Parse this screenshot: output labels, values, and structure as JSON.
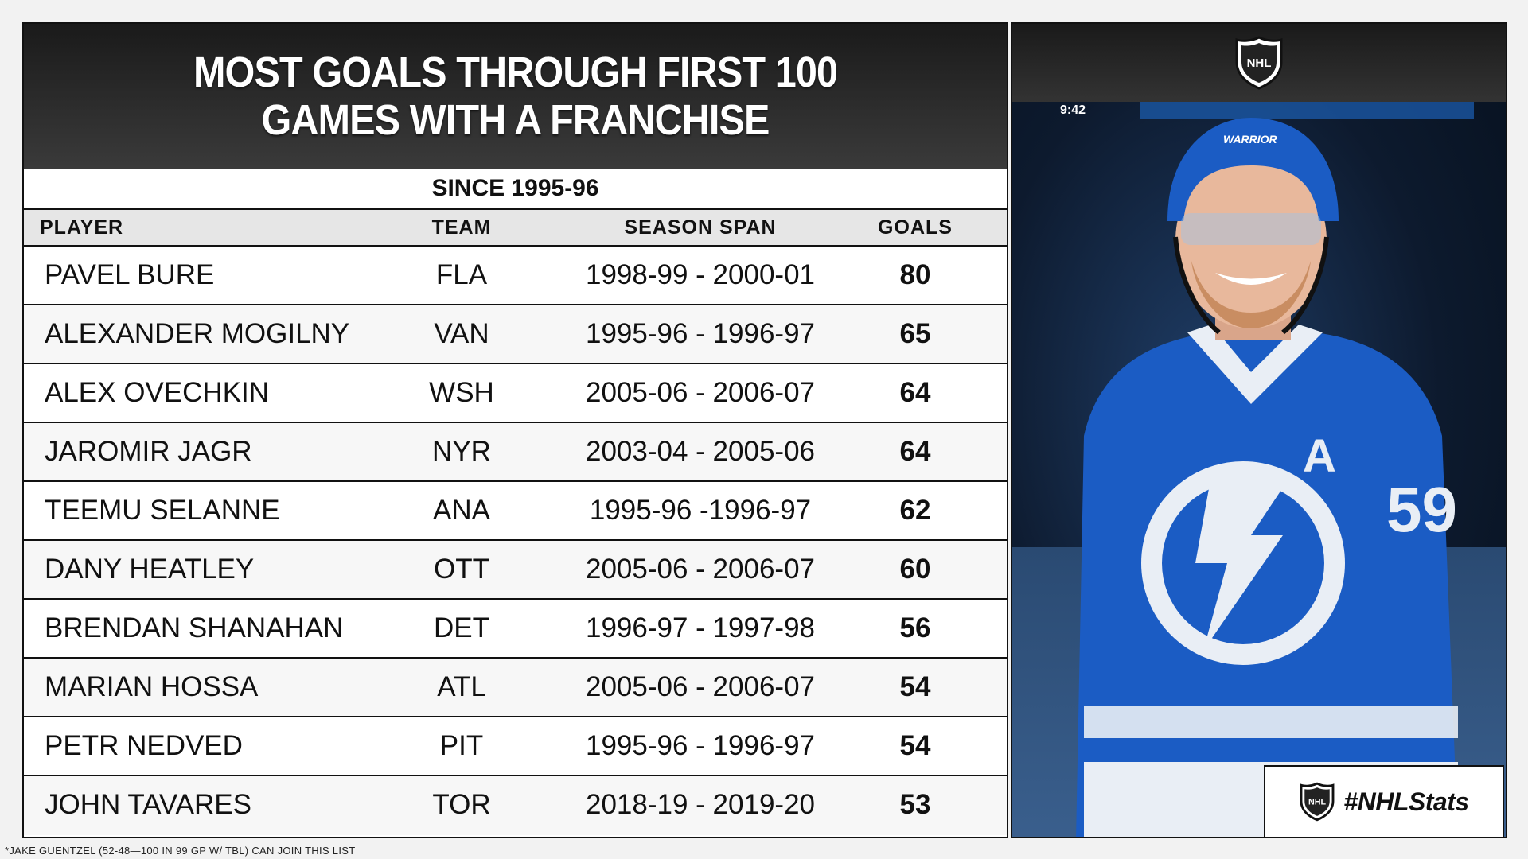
{
  "title_line1": "MOST GOALS THROUGH FIRST 100",
  "title_line2": "GAMES WITH A FRANCHISE",
  "subtitle": "SINCE 1995-96",
  "columns": {
    "player": "PLAYER",
    "team": "TEAM",
    "span": "SEASON SPAN",
    "goals": "GOALS"
  },
  "footnote": "*JAKE GUENTZEL (52-48—100 IN 99 GP W/ TBL) CAN JOIN THIS LIST",
  "badge": {
    "text": "#NHLStats",
    "logo_text": "NHL"
  },
  "header_logo_text": "NHL",
  "photo": {
    "clock": "9:42",
    "helmet_brand": "WARRIOR",
    "jersey_letter": "A",
    "jersey_number": "59"
  },
  "colors": {
    "header_bg": "#2c2c2c",
    "accent_blue": "#1d5fb5",
    "text": "#111111"
  },
  "chart_data": {
    "type": "table",
    "title": "MOST GOALS THROUGH FIRST 100 GAMES WITH A FRANCHISE",
    "subtitle": "SINCE 1995-96",
    "columns": [
      "PLAYER",
      "TEAM",
      "SEASON SPAN",
      "GOALS"
    ],
    "rows": [
      {
        "player": "PAVEL BURE",
        "team": "FLA",
        "span": "1998-99 - 2000-01",
        "goals": "80"
      },
      {
        "player": "ALEXANDER MOGILNY",
        "team": "VAN",
        "span": "1995-96 - 1996-97",
        "goals": "65"
      },
      {
        "player": "ALEX OVECHKIN",
        "team": "WSH",
        "span": "2005-06 - 2006-07",
        "goals": "64"
      },
      {
        "player": "JAROMIR JAGR",
        "team": "NYR",
        "span": "2003-04 - 2005-06",
        "goals": "64"
      },
      {
        "player": "TEEMU SELANNE",
        "team": "ANA",
        "span": "1995-96 -1996-97",
        "goals": "62"
      },
      {
        "player": "DANY HEATLEY",
        "team": "OTT",
        "span": "2005-06 - 2006-07",
        "goals": "60"
      },
      {
        "player": "BRENDAN SHANAHAN",
        "team": "DET",
        "span": "1996-97 - 1997-98",
        "goals": "56"
      },
      {
        "player": "MARIAN HOSSA",
        "team": "ATL",
        "span": "2005-06 - 2006-07",
        "goals": "54"
      },
      {
        "player": "PETR NEDVED",
        "team": "PIT",
        "span": "1995-96 - 1996-97",
        "goals": "54"
      },
      {
        "player": "JOHN TAVARES",
        "team": "TOR",
        "span": "2018-19 - 2019-20",
        "goals": "53"
      }
    ]
  }
}
